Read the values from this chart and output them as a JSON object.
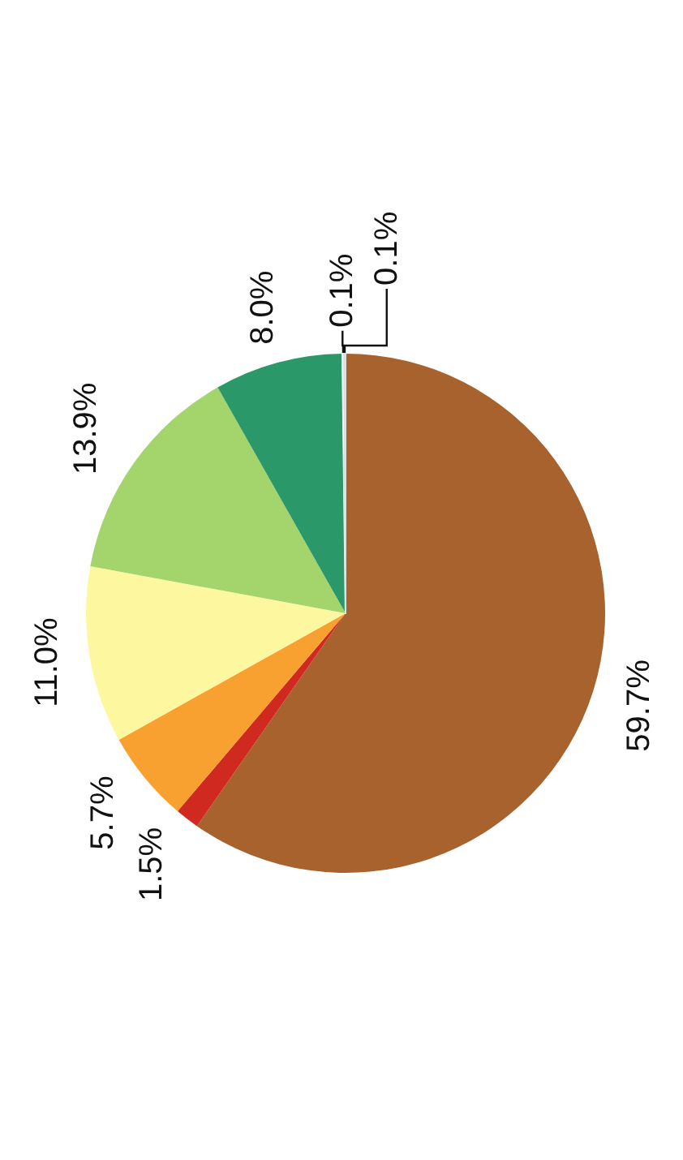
{
  "chart_data": {
    "type": "pie",
    "categories": [
      null,
      null,
      null,
      null,
      null,
      null,
      null,
      null
    ],
    "values": [
      59.7,
      1.5,
      5.7,
      11.0,
      13.9,
      8.0,
      0.1,
      0.1
    ],
    "colors": [
      "#a8622e",
      "#d02a20",
      "#f8a030",
      "#fdf8a0",
      "#a4d46c",
      "#2a9868",
      "#ffffff",
      "#e0e0e0"
    ],
    "value_labels": [
      "59.7%",
      "1.5%",
      "5.7%",
      "11.0%",
      "13.9%",
      "8.0%",
      "0.1%",
      "0.1%"
    ]
  }
}
